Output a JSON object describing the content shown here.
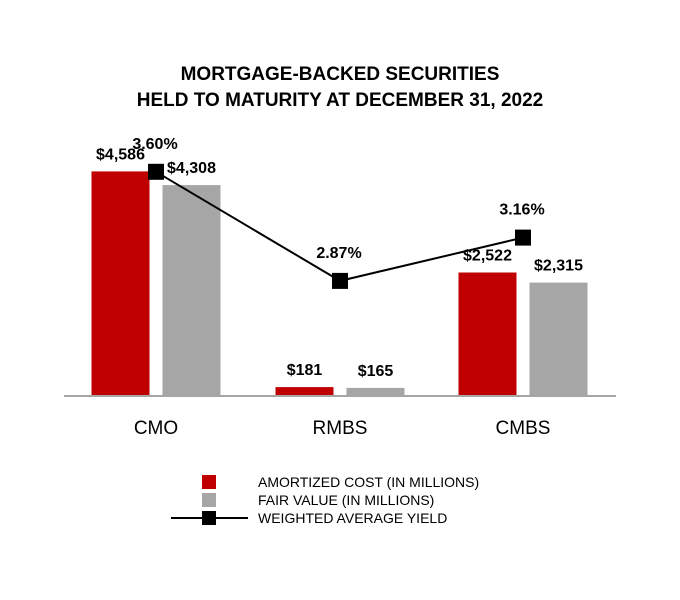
{
  "chart_data": {
    "type": "bar",
    "title": [
      "MORTGAGE-BACKED SECURITIES",
      "HELD TO MATURITY AT DECEMBER 31, 2022"
    ],
    "categories": [
      "CMO",
      "RMBS",
      "CMBS"
    ],
    "series": [
      {
        "name": "AMORTIZED COST (IN MILLIONS)",
        "type": "bar",
        "color": "#c00000",
        "values": [
          4586,
          181,
          2522
        ],
        "labels": [
          "$4,586",
          "$181",
          "$2,522"
        ]
      },
      {
        "name": "FAIR VALUE (IN MILLIONS)",
        "type": "bar",
        "color": "#a6a6a6",
        "values": [
          4308,
          165,
          2315
        ],
        "labels": [
          "$4,308",
          "$165",
          "$2,315"
        ]
      },
      {
        "name": "WEIGHTED AVERAGE YIELD",
        "type": "line",
        "color": "#000000",
        "values": [
          3.6,
          2.87,
          3.16
        ],
        "labels": [
          "3.60%",
          "2.87%",
          "3.16%"
        ]
      }
    ],
    "bar_ylim": [
      0,
      5800
    ],
    "yield_ylim": [
      2.1,
      4.0
    ],
    "legend_position": "bottom",
    "grid": false
  }
}
